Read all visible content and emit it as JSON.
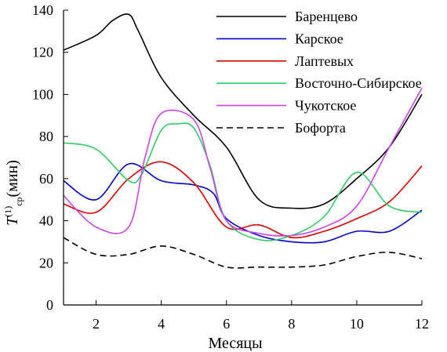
{
  "chart_data": {
    "type": "line",
    "xlabel": "Месяцы",
    "ylabel": {
      "base": "T",
      "sup": "(1)",
      "sub": "ср",
      "unit": "(мин)"
    },
    "xlim": [
      1,
      12
    ],
    "ylim": [
      0,
      140
    ],
    "xticks": [
      2,
      4,
      6,
      8,
      10,
      12
    ],
    "yticks": [
      0,
      20,
      40,
      60,
      80,
      100,
      120,
      140
    ],
    "grid": false,
    "legend_position": "top-right",
    "series": [
      {
        "name": "Баренцево",
        "color": "#000000",
        "dash": "solid",
        "x": [
          1,
          2,
          2.5,
          3,
          3.3,
          4,
          5,
          6,
          7,
          8,
          9,
          10,
          11,
          12
        ],
        "y": [
          121,
          128,
          135,
          138,
          130,
          108,
          90,
          75,
          50,
          46,
          48,
          60,
          75,
          100
        ]
      },
      {
        "name": "Карское",
        "color": "#0000cc",
        "dash": "solid",
        "x": [
          1,
          2,
          3,
          4,
          5,
          5.6,
          6,
          7,
          8,
          9,
          10,
          11,
          12
        ],
        "y": [
          59,
          50,
          67,
          59,
          57,
          53,
          41,
          33,
          30,
          30,
          35,
          35,
          45
        ]
      },
      {
        "name": "Лаптевых",
        "color": "#dd0000",
        "dash": "solid",
        "x": [
          1,
          2,
          3,
          4,
          5,
          6,
          7,
          8,
          9,
          10,
          11,
          12
        ],
        "y": [
          48,
          44,
          60,
          68,
          58,
          37,
          38,
          32,
          35,
          41,
          49,
          66
        ]
      },
      {
        "name": "Восточно-Сибирское",
        "color": "#33cc66",
        "dash": "solid",
        "x": [
          1,
          2,
          3,
          3.4,
          4,
          4.5,
          5,
          5.5,
          6,
          7,
          8,
          9,
          10,
          11,
          12
        ],
        "y": [
          77,
          74,
          59,
          62,
          83,
          86,
          84,
          66,
          40,
          31,
          33,
          42,
          63,
          47,
          44
        ]
      },
      {
        "name": "Чукотское",
        "color": "#cc44ee",
        "dash": "solid",
        "x": [
          1,
          2,
          3,
          3.5,
          4,
          5,
          5.5,
          6,
          7,
          8,
          9,
          10,
          11,
          12
        ],
        "y": [
          52,
          37,
          37,
          70,
          91,
          88,
          65,
          40,
          34,
          33,
          37,
          47,
          75,
          103
        ]
      },
      {
        "name": "Бофорта",
        "color": "#000000",
        "dash": "dashed",
        "x": [
          1,
          2,
          3,
          4,
          5,
          6,
          7,
          8,
          9,
          10,
          11,
          12
        ],
        "y": [
          32,
          24,
          24,
          28,
          24,
          18,
          18,
          18,
          19,
          23,
          25,
          22
        ]
      }
    ]
  }
}
